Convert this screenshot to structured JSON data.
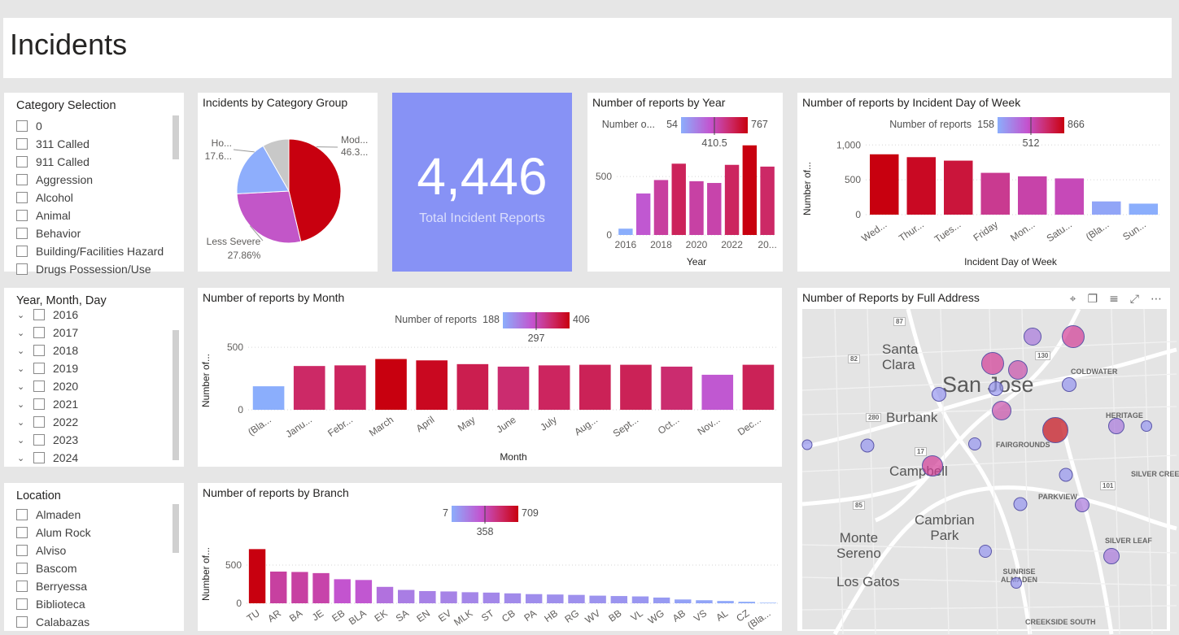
{
  "page": {
    "title": "Incidents"
  },
  "category_slicer": {
    "title": "Category Selection",
    "items": [
      "0",
      "311 Called",
      "911 Called",
      "Aggression",
      "Alcohol",
      "Animal",
      "Behavior",
      "Building/Facilities Hazard",
      "Drugs Possession/Use"
    ]
  },
  "date_slicer": {
    "title": "Year, Month, Day",
    "items": [
      "2016",
      "2017",
      "2018",
      "2019",
      "2020",
      "2021",
      "2022",
      "2023",
      "2024"
    ]
  },
  "location_slicer": {
    "title": "Location",
    "items": [
      "Almaden",
      "Alum Rock",
      "Alviso",
      "Bascom",
      "Berryessa",
      "Biblioteca",
      "Calabazas"
    ]
  },
  "kpi": {
    "value": "4,446",
    "label": "Total Incident Reports"
  },
  "map": {
    "title": "Number of Reports by Full Address",
    "tool_icons": [
      "pin-icon",
      "copy-icon",
      "filter-icon",
      "focus-icon",
      "more-icon"
    ],
    "labels": {
      "santa_clara": "Santa\nClara",
      "san_jose": "San Jose",
      "burbank": "Burbank",
      "campbell": "Campbell",
      "cambrian_park": "Cambrian\nPark",
      "monte_sereno": "Monte\nSereno",
      "los_gatos": "Los Gatos",
      "coldwater": "COLDWATER",
      "heritage": "HERITAGE",
      "fairgrounds": "FAIRGROUNDS",
      "silver_creek": "SILVER CREE",
      "parkview": "PARKVIEW",
      "silver_leaf": "SILVER LEAF",
      "sunrise_almaden": "SUNRISE\nALMADEN",
      "creekside_south": "CREEKSIDE SOUTH"
    },
    "shields": [
      "87",
      "82",
      "130",
      "280",
      "17",
      "101",
      "85"
    ]
  },
  "chart_data": [
    {
      "type": "pie",
      "title": "Incidents by Category Group",
      "slices": [
        {
          "name": "Mod...",
          "label": "46.3...",
          "value": 46.3,
          "color": "#c8000f"
        },
        {
          "name": "Less Severe",
          "label": "27.86%",
          "value": 27.86,
          "color": "#c256c8"
        },
        {
          "name": "Ho...",
          "label": "17.6...",
          "value": 17.6,
          "color": "#8eaefc"
        },
        {
          "name": "",
          "label": "",
          "value": 8.24,
          "color": "#c8c8c8"
        }
      ]
    },
    {
      "type": "bar",
      "title": "Number of reports by Year",
      "xlabel": "Year",
      "categories": [
        "2016",
        "2017",
        "2018",
        "2019",
        "2020",
        "2021",
        "2022",
        "2023",
        "2024"
      ],
      "tick_labels": [
        "2016",
        "",
        "2018",
        "",
        "2020",
        "",
        "2022",
        "",
        "20..."
      ],
      "values": [
        54,
        355,
        470,
        610,
        460,
        445,
        600,
        767,
        585
      ],
      "ylim": [
        0,
        800
      ],
      "yticks": [
        0,
        500
      ],
      "legend": {
        "label": "Number o...",
        "min": "54",
        "mid": "410.5",
        "max": "767"
      }
    },
    {
      "type": "bar",
      "title": "Number of reports by Incident Day of Week",
      "xlabel": "Incident Day of Week",
      "ylabel": "Number of...",
      "categories": [
        "Wed...",
        "Thur...",
        "Tues...",
        "Friday",
        "Mon...",
        "Satu...",
        "(Bla...",
        "Sun..."
      ],
      "values": [
        866,
        825,
        775,
        600,
        550,
        520,
        190,
        158
      ],
      "ylim": [
        0,
        1050
      ],
      "yticks": [
        "0",
        "500",
        "1,000"
      ],
      "legend": {
        "label": "Number of reports",
        "min": "158",
        "mid": "512",
        "max": "866"
      }
    },
    {
      "type": "bar",
      "title": "Number of reports by Month",
      "xlabel": "Month",
      "ylabel": "Number of...",
      "categories": [
        "(Bla...",
        "Janu...",
        "Febr...",
        "March",
        "April",
        "May",
        "June",
        "July",
        "Aug...",
        "Sept...",
        "Oct...",
        "Nov...",
        "Dec..."
      ],
      "values": [
        188,
        350,
        355,
        406,
        395,
        365,
        345,
        355,
        360,
        360,
        345,
        280,
        360
      ],
      "ylim": [
        0,
        520
      ],
      "yticks": [
        0,
        500
      ],
      "legend": {
        "label": "Number of reports",
        "min": "188",
        "mid": "297",
        "max": "406"
      }
    },
    {
      "type": "bar",
      "title": "Number of reports by Branch",
      "ylabel": "Number of...",
      "categories": [
        "TU",
        "AR",
        "BA",
        "JE",
        "EB",
        "BLA",
        "EK",
        "SA",
        "EN",
        "EV",
        "MLK",
        "ST",
        "CB",
        "PA",
        "HB",
        "RG",
        "WV",
        "BB",
        "VL",
        "WG",
        "AB",
        "VS",
        "AL",
        "CZ",
        "(Bla..."
      ],
      "values": [
        709,
        415,
        410,
        395,
        315,
        305,
        215,
        175,
        160,
        155,
        145,
        140,
        130,
        120,
        115,
        110,
        100,
        95,
        90,
        75,
        50,
        40,
        30,
        20,
        7
      ],
      "ylim": [
        0,
        830
      ],
      "yticks": [
        0,
        500
      ],
      "legend": {
        "label": "",
        "min": "7",
        "mid": "358",
        "max": "709"
      }
    }
  ]
}
